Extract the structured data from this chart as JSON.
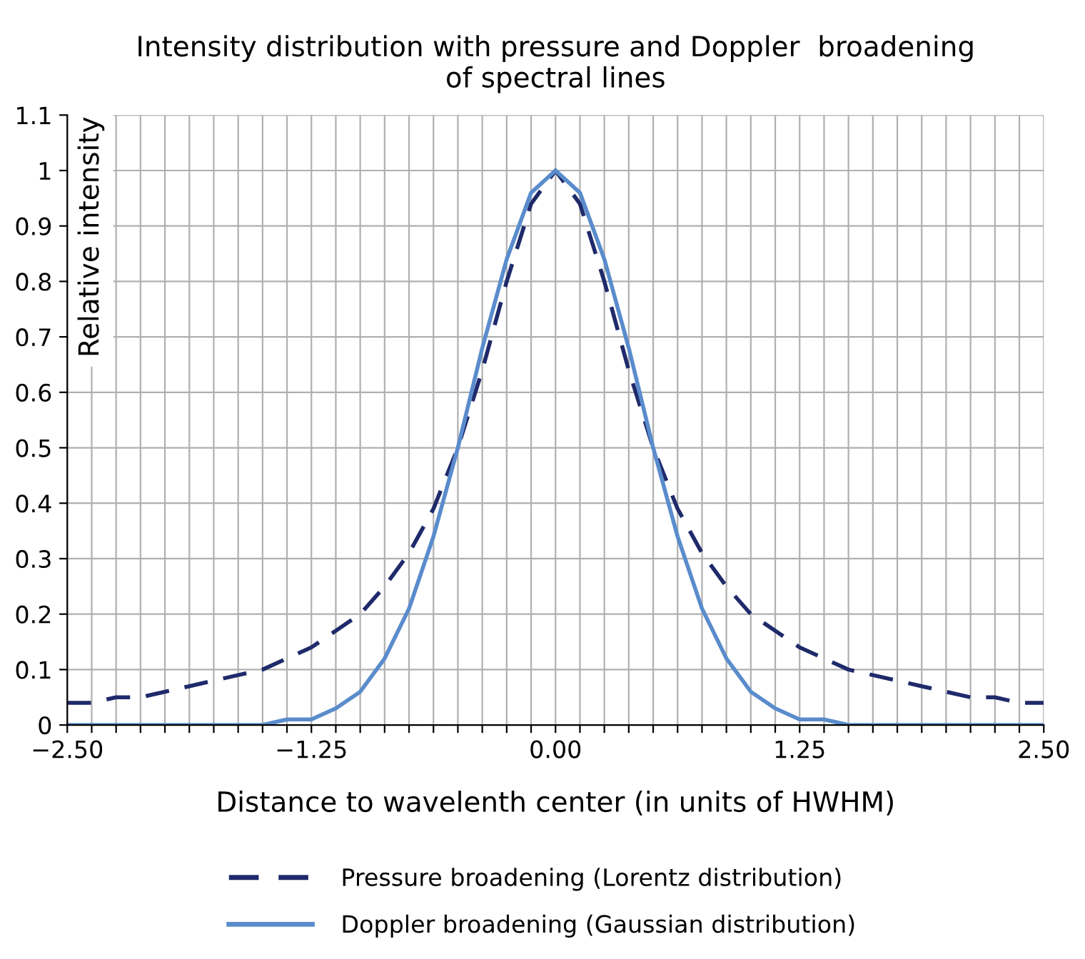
{
  "chart_data": {
    "type": "line",
    "title": "Intensity distribution with pressure and Doppler  broadening\nof spectral lines",
    "xlabel": "Distance to wavelenth center (in units of HWHM)",
    "ylabel": "Relative intensity",
    "x": [
      -2.5,
      -2.375,
      -2.25,
      -2.125,
      -2.0,
      -1.875,
      -1.75,
      -1.625,
      -1.5,
      -1.375,
      -1.25,
      -1.125,
      -1.0,
      -0.875,
      -0.75,
      -0.625,
      -0.5,
      -0.375,
      -0.25,
      -0.125,
      0,
      0.125,
      0.25,
      0.375,
      0.5,
      0.625,
      0.75,
      0.875,
      1.0,
      1.125,
      1.25,
      1.375,
      1.5,
      1.625,
      1.75,
      1.875,
      2.0,
      2.125,
      2.25,
      2.375,
      2.5
    ],
    "series": [
      {
        "name": "Pressure broadening (Lorentz distribution)",
        "color": "#1f2a6b",
        "line_style": "dashed",
        "values": [
          0.04,
          0.04,
          0.05,
          0.05,
          0.06,
          0.07,
          0.08,
          0.09,
          0.1,
          0.12,
          0.14,
          0.17,
          0.2,
          0.25,
          0.31,
          0.39,
          0.5,
          0.64,
          0.8,
          0.94,
          1,
          0.94,
          0.8,
          0.64,
          0.5,
          0.39,
          0.31,
          0.25,
          0.2,
          0.17,
          0.14,
          0.12,
          0.1,
          0.09,
          0.08,
          0.07,
          0.06,
          0.05,
          0.05,
          0.04,
          0.04
        ]
      },
      {
        "name": "Doppler broadening (Gaussian distribution)",
        "color": "#5a8ccc",
        "line_style": "solid",
        "values": [
          0,
          0,
          0,
          0,
          0,
          0,
          0,
          0,
          0,
          0.01,
          0.01,
          0.03,
          0.06,
          0.12,
          0.21,
          0.34,
          0.5,
          0.68,
          0.84,
          0.96,
          1,
          0.96,
          0.84,
          0.68,
          0.5,
          0.34,
          0.21,
          0.12,
          0.06,
          0.03,
          0.01,
          0.01,
          0,
          0,
          0,
          0,
          0,
          0,
          0,
          0,
          0
        ]
      }
    ],
    "xlim": [
      -2.5,
      2.5
    ],
    "xticks": [
      {
        "value": -2.5,
        "label": "−2.50"
      },
      {
        "value": -2.375,
        "label": null
      },
      {
        "value": -2.25,
        "label": null
      },
      {
        "value": -2.125,
        "label": null
      },
      {
        "value": -2.0,
        "label": null
      },
      {
        "value": -1.875,
        "label": null
      },
      {
        "value": -1.75,
        "label": null
      },
      {
        "value": -1.625,
        "label": null
      },
      {
        "value": -1.5,
        "label": null
      },
      {
        "value": -1.375,
        "label": null
      },
      {
        "value": -1.25,
        "label": "−1.25"
      },
      {
        "value": -1.125,
        "label": null
      },
      {
        "value": -1.0,
        "label": null
      },
      {
        "value": -0.875,
        "label": null
      },
      {
        "value": -0.75,
        "label": null
      },
      {
        "value": -0.625,
        "label": null
      },
      {
        "value": -0.5,
        "label": null
      },
      {
        "value": -0.375,
        "label": null
      },
      {
        "value": -0.25,
        "label": null
      },
      {
        "value": -0.125,
        "label": null
      },
      {
        "value": 0,
        "label": "0.00"
      },
      {
        "value": 0.125,
        "label": null
      },
      {
        "value": 0.25,
        "label": null
      },
      {
        "value": 0.375,
        "label": null
      },
      {
        "value": 0.5,
        "label": null
      },
      {
        "value": 0.625,
        "label": null
      },
      {
        "value": 0.75,
        "label": null
      },
      {
        "value": 0.875,
        "label": null
      },
      {
        "value": 1.0,
        "label": null
      },
      {
        "value": 1.125,
        "label": null
      },
      {
        "value": 1.25,
        "label": "1.25"
      },
      {
        "value": 1.375,
        "label": null
      },
      {
        "value": 1.5,
        "label": null
      },
      {
        "value": 1.625,
        "label": null
      },
      {
        "value": 1.75,
        "label": null
      },
      {
        "value": 1.875,
        "label": null
      },
      {
        "value": 2.0,
        "label": null
      },
      {
        "value": 2.125,
        "label": null
      },
      {
        "value": 2.25,
        "label": null
      },
      {
        "value": 2.375,
        "label": null
      },
      {
        "value": 2.5,
        "label": "2.50"
      }
    ],
    "ylim": [
      0,
      1.1
    ],
    "yticks": [
      0,
      0.1,
      0.2,
      0.3,
      0.4,
      0.5,
      0.6,
      0.7,
      0.8,
      0.9,
      1,
      1.1
    ],
    "grid": true,
    "legend": "bottom",
    "marker": "none"
  }
}
